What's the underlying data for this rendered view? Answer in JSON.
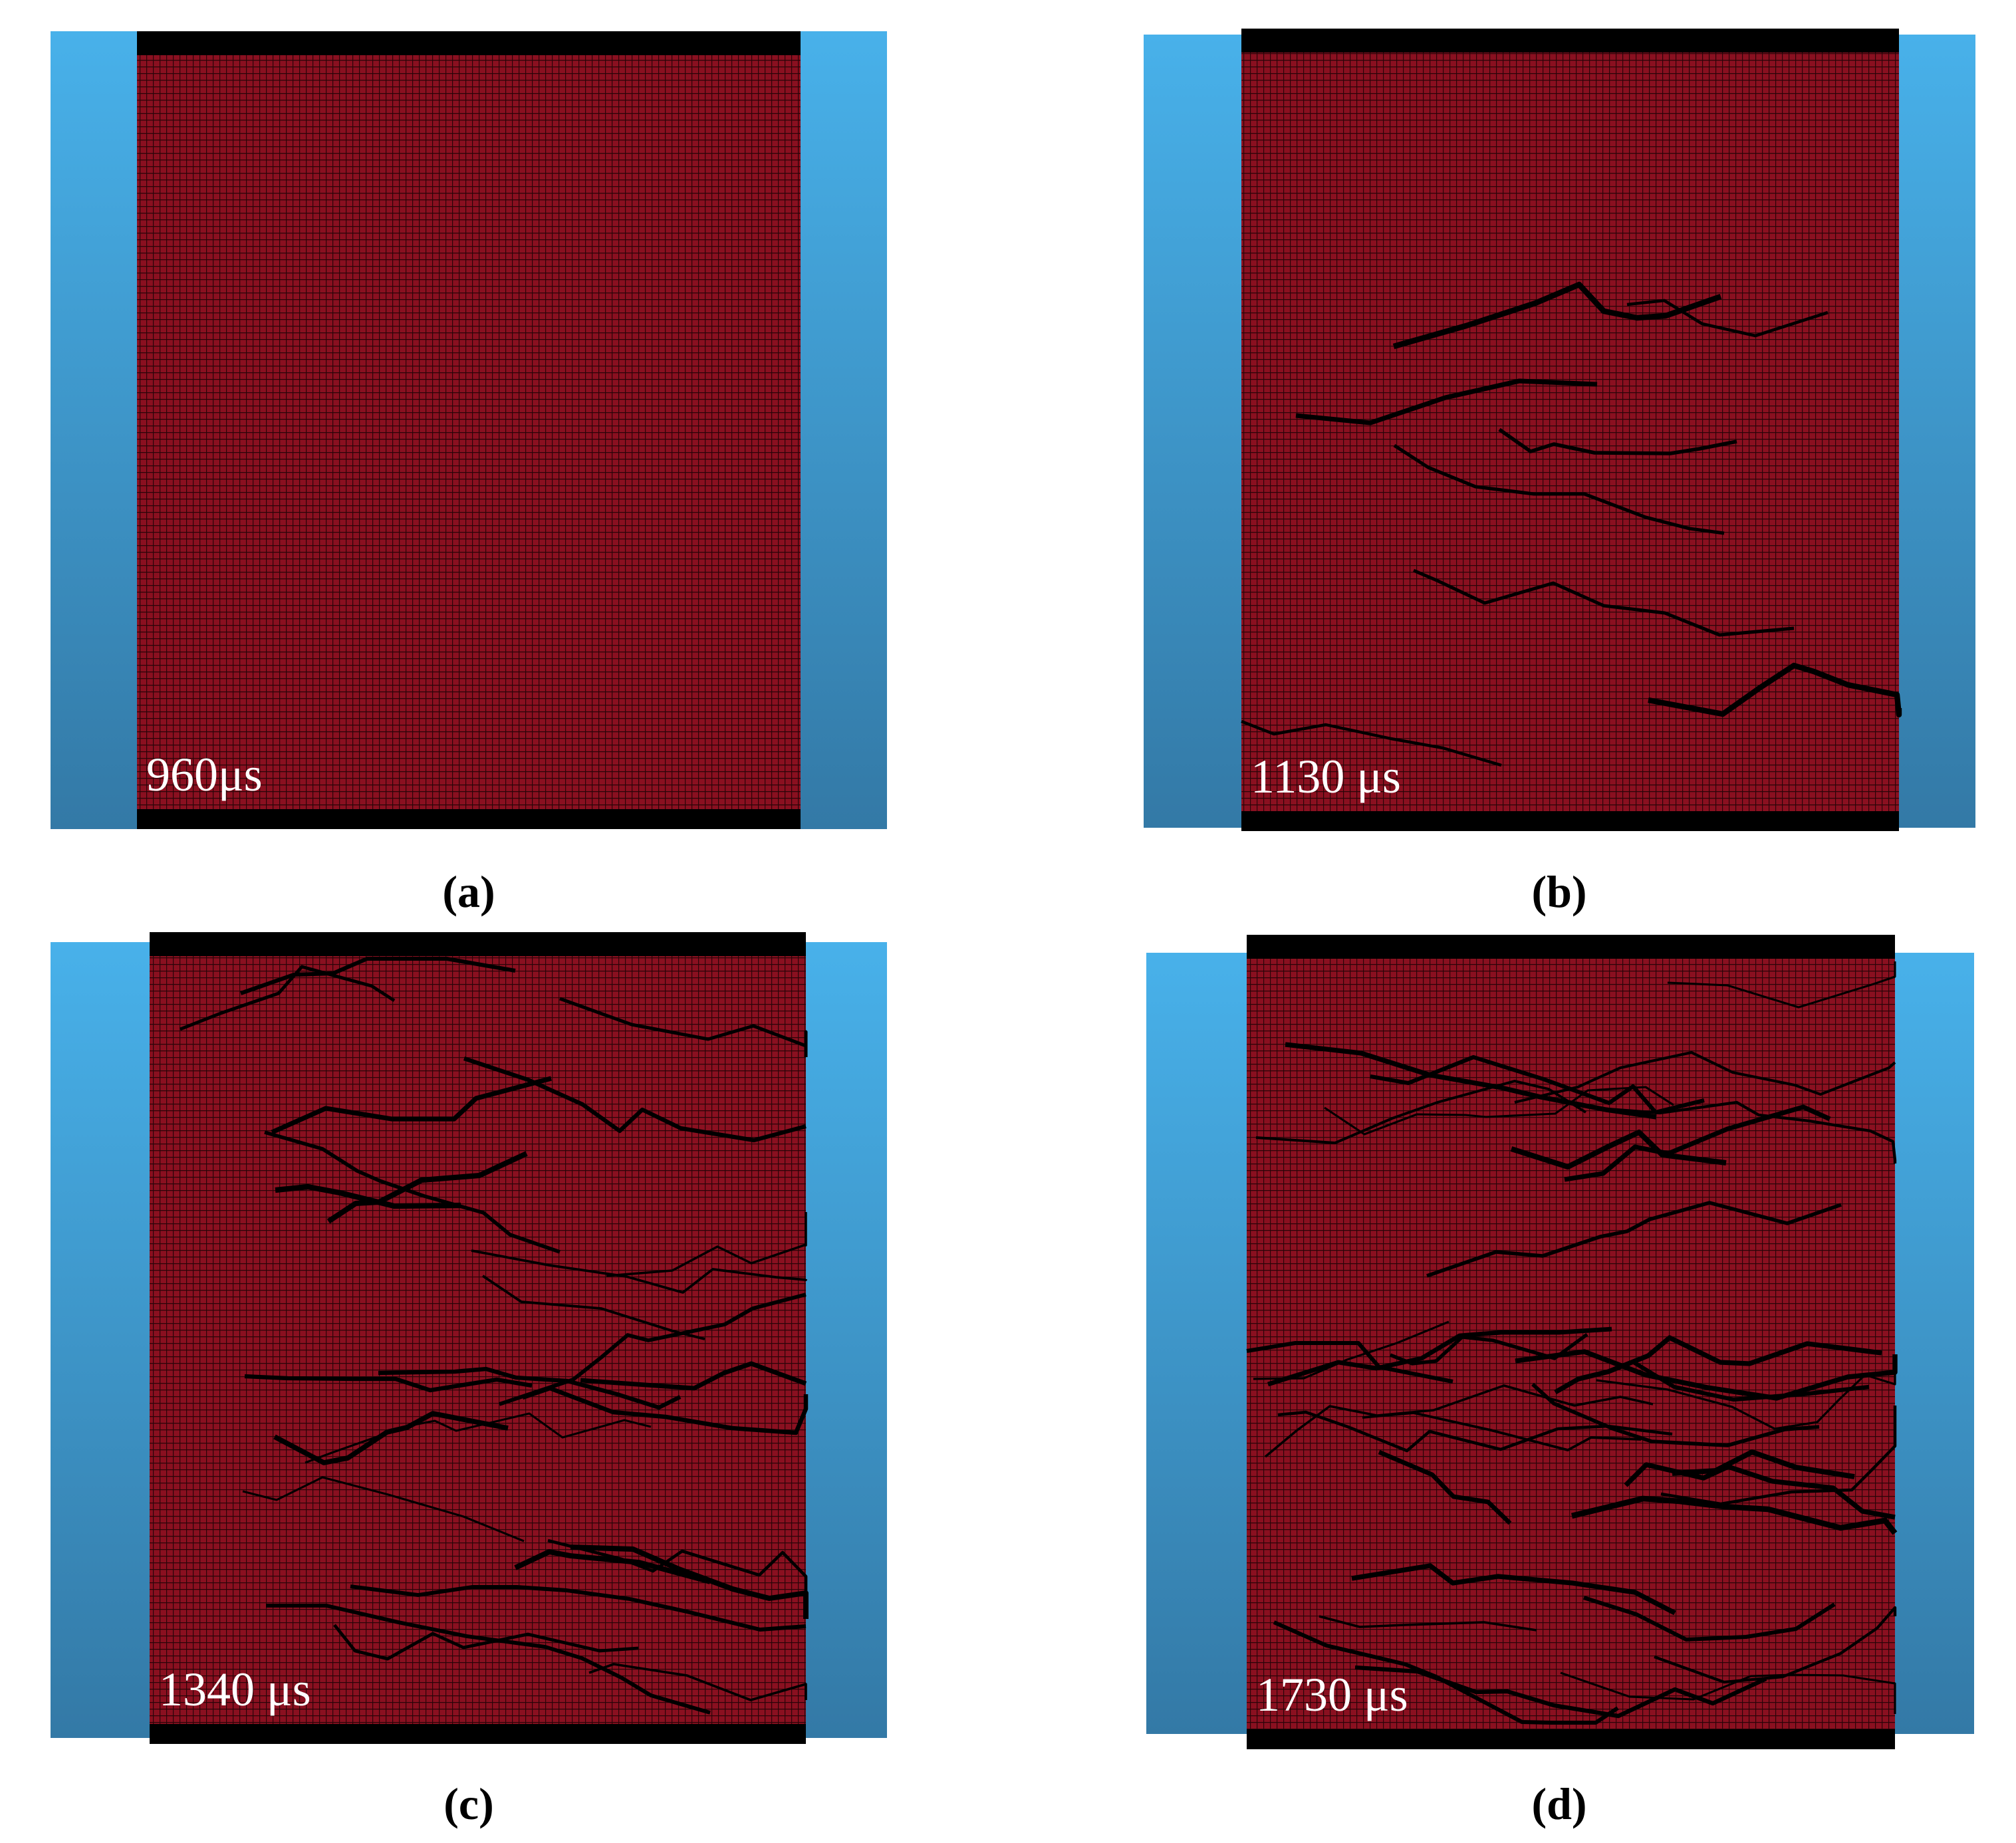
{
  "panels": [
    {
      "caption": "(a)",
      "time": "960μs"
    },
    {
      "caption": "(b)",
      "time": "1130 μs"
    },
    {
      "caption": "(c)",
      "time": "1340 μs"
    },
    {
      "caption": "(d)",
      "time": "1730 μs"
    }
  ]
}
